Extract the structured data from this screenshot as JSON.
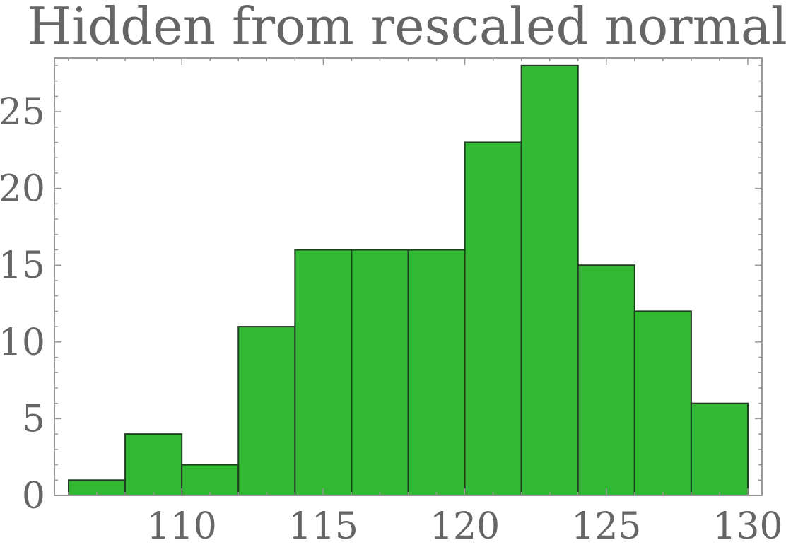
{
  "chart_data": {
    "type": "bar",
    "title": "Hidden from rescaled normal",
    "bins": [
      {
        "start": 106,
        "end": 108,
        "count": 1
      },
      {
        "start": 108,
        "end": 110,
        "count": 4
      },
      {
        "start": 110,
        "end": 112,
        "count": 2
      },
      {
        "start": 112,
        "end": 114,
        "count": 11
      },
      {
        "start": 114,
        "end": 116,
        "count": 16
      },
      {
        "start": 116,
        "end": 118,
        "count": 16
      },
      {
        "start": 118,
        "end": 120,
        "count": 16
      },
      {
        "start": 120,
        "end": 122,
        "count": 23
      },
      {
        "start": 122,
        "end": 124,
        "count": 28
      },
      {
        "start": 124,
        "end": 126,
        "count": 15
      },
      {
        "start": 126,
        "end": 128,
        "count": 12
      },
      {
        "start": 128,
        "end": 130,
        "count": 6
      }
    ],
    "xticks": [
      110,
      115,
      120,
      125,
      130
    ],
    "yticks": [
      0,
      5,
      10,
      15,
      20,
      25
    ],
    "xlim": [
      105.5,
      130.5
    ],
    "ylim": [
      0,
      28.5
    ],
    "grid": false,
    "bar_color": "#33b833",
    "bar_edge_color": "#1f3d1f",
    "frame_color": "#999999",
    "text_color": "#666666"
  }
}
